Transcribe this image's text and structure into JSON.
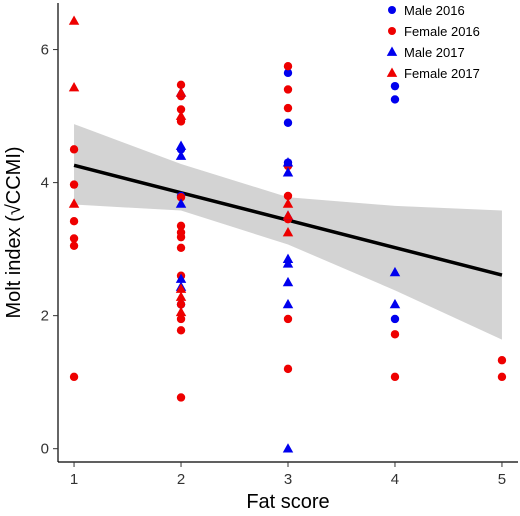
{
  "chart_data": {
    "type": "scatter",
    "xlabel": "Fat score",
    "ylabel": "Molt index (√CCMI)",
    "xlim": [
      0.85,
      5.15
    ],
    "ylim": [
      -0.2,
      6.7
    ],
    "x_ticks": [
      "1",
      "2",
      "3",
      "4",
      "5"
    ],
    "y_ticks": [
      "0",
      "2",
      "4",
      "6"
    ],
    "grid": false,
    "legend_position": "top-right",
    "colors": {
      "male": "#0000ee",
      "female": "#ee0000",
      "line": "#000000",
      "band": "#d3d3d3"
    },
    "series": [
      {
        "name": "Male 2016",
        "marker": "circle",
        "color": "#0000ee",
        "points": [
          [
            2,
            3.8
          ],
          [
            2,
            2.17
          ],
          [
            2,
            4.5
          ],
          [
            3,
            5.65
          ],
          [
            3,
            4.9
          ],
          [
            3,
            4.3
          ],
          [
            4,
            5.45
          ],
          [
            4,
            5.25
          ],
          [
            4,
            1.95
          ]
        ]
      },
      {
        "name": "Female 2016",
        "marker": "circle",
        "color": "#ee0000",
        "points": [
          [
            1,
            4.5
          ],
          [
            1,
            3.97
          ],
          [
            1,
            3.42
          ],
          [
            1,
            3.16
          ],
          [
            1,
            3.05
          ],
          [
            1,
            1.08
          ],
          [
            2,
            5.47
          ],
          [
            2,
            5.3
          ],
          [
            2,
            5.1
          ],
          [
            2,
            4.92
          ],
          [
            2,
            3.78
          ],
          [
            2,
            3.35
          ],
          [
            2,
            3.25
          ],
          [
            2,
            3.18
          ],
          [
            2,
            3.02
          ],
          [
            2,
            2.6
          ],
          [
            2,
            2.17
          ],
          [
            2,
            1.95
          ],
          [
            2,
            1.78
          ],
          [
            2,
            0.77
          ],
          [
            3,
            5.75
          ],
          [
            3,
            5.4
          ],
          [
            3,
            5.12
          ],
          [
            3,
            4.25
          ],
          [
            3,
            3.8
          ],
          [
            3,
            3.45
          ],
          [
            3,
            1.95
          ],
          [
            3,
            1.2
          ],
          [
            4,
            1.72
          ],
          [
            4,
            1.08
          ],
          [
            5,
            1.33
          ],
          [
            5,
            1.08
          ]
        ]
      },
      {
        "name": "Male 2017",
        "marker": "triangle",
        "color": "#0000ee",
        "points": [
          [
            2,
            5.35
          ],
          [
            2,
            4.55
          ],
          [
            2,
            4.4
          ],
          [
            2,
            3.68
          ],
          [
            2,
            2.55
          ],
          [
            2,
            2.43
          ],
          [
            3,
            4.3
          ],
          [
            3,
            4.15
          ],
          [
            3,
            3.5
          ],
          [
            3,
            2.85
          ],
          [
            3,
            2.78
          ],
          [
            3,
            2.5
          ],
          [
            3,
            2.17
          ],
          [
            3,
            0.0
          ],
          [
            4,
            2.65
          ],
          [
            4,
            2.17
          ]
        ]
      },
      {
        "name": "Female 2017",
        "marker": "triangle",
        "color": "#ee0000",
        "points": [
          [
            1,
            6.43
          ],
          [
            1,
            5.43
          ],
          [
            1,
            3.68
          ],
          [
            2,
            5.35
          ],
          [
            2,
            5.0
          ],
          [
            2,
            2.4
          ],
          [
            2,
            2.28
          ],
          [
            2,
            2.05
          ],
          [
            3,
            3.68
          ],
          [
            3,
            3.5
          ],
          [
            3,
            3.25
          ]
        ]
      }
    ],
    "trend_line": {
      "x": [
        1,
        5
      ],
      "y": [
        4.26,
        2.61
      ]
    },
    "confidence_band": {
      "x": [
        1,
        2,
        3,
        4,
        5
      ],
      "upper": [
        4.88,
        4.28,
        3.78,
        3.65,
        3.58
      ],
      "lower": [
        3.67,
        3.58,
        3.07,
        2.38,
        1.64
      ]
    }
  }
}
